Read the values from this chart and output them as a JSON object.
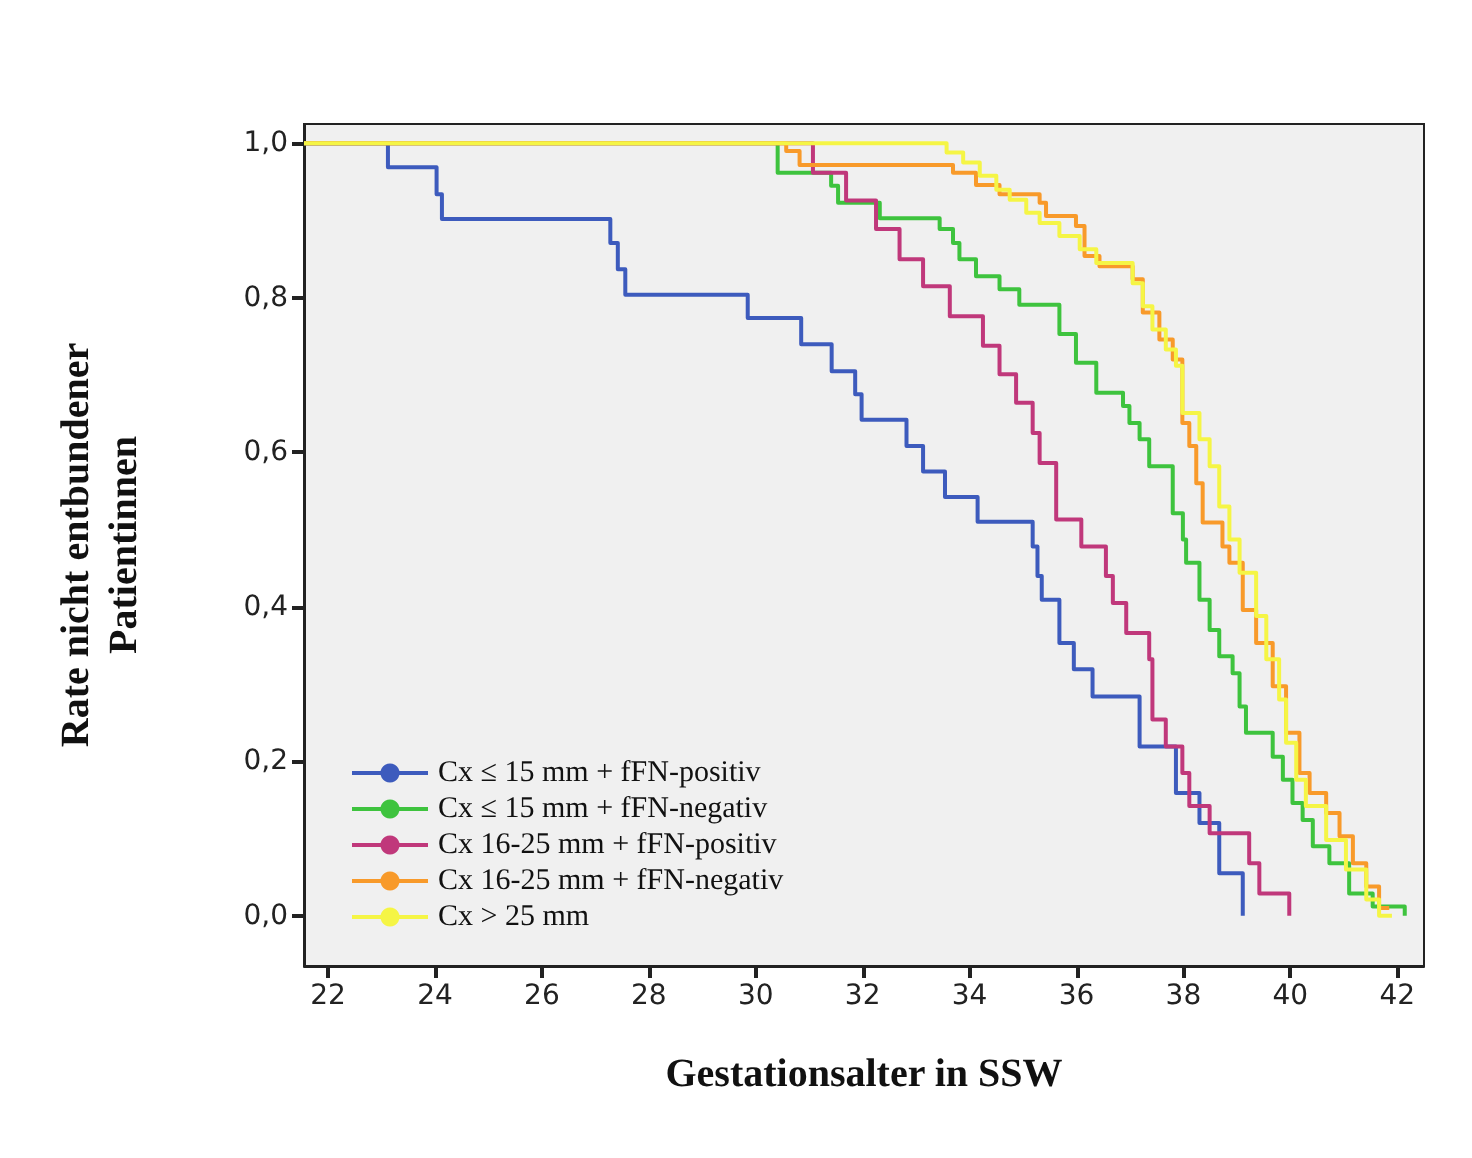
{
  "chart_data": {
    "type": "step",
    "xlabel": "Gestationsalter in SSW",
    "ylabel": "Rate nicht entbundener\nPatientinnen",
    "xlim": [
      21.55,
      42.5
    ],
    "xticks": [
      22,
      24,
      26,
      28,
      30,
      32,
      34,
      36,
      38,
      40,
      42
    ],
    "ylim": [
      -0.065,
      1.025
    ],
    "yticks": [
      {
        "value": 0,
        "label": "0,0"
      },
      {
        "value": 0.2,
        "label": "0,2"
      },
      {
        "value": 0.4,
        "label": "0,4"
      },
      {
        "value": 0.6,
        "label": "0,6"
      },
      {
        "value": 0.8,
        "label": "0,8"
      },
      {
        "value": 1,
        "label": "1,0"
      }
    ],
    "grid": false,
    "legend": "bottom left",
    "marker": "none",
    "line_style": "solid",
    "series": [
      {
        "name": "Cx ≤ 15 mm + fFN-positiv",
        "color": "#3d5bbd",
        "x": [
          21.55,
          23.12,
          24.03,
          24.13,
          27.28,
          27.42,
          27.56,
          29.85,
          30.85,
          31.42,
          31.86,
          31.98,
          32.82,
          33.13,
          33.54,
          34.15,
          35.18,
          35.27,
          35.35,
          35.68,
          35.95,
          36.3,
          37.18,
          37.86,
          38.3,
          38.67,
          39.11,
          39.11
        ],
        "values": [
          1.0,
          0.969,
          0.934,
          0.902,
          0.871,
          0.837,
          0.804,
          0.774,
          0.74,
          0.705,
          0.675,
          0.642,
          0.608,
          0.575,
          0.542,
          0.51,
          0.478,
          0.44,
          0.409,
          0.353,
          0.319,
          0.284,
          0.219,
          0.159,
          0.12,
          0.055,
          0.021,
          0.0
        ]
      },
      {
        "name": "Cx ≤ 15 mm + fFN-negativ",
        "color": "#3ec33e",
        "x": [
          21.55,
          30.41,
          31.41,
          31.54,
          32.32,
          33.44,
          33.69,
          33.81,
          34.12,
          34.56,
          34.93,
          35.68,
          35.99,
          36.37,
          36.87,
          36.99,
          37.18,
          37.36,
          37.8,
          37.99,
          38.05,
          38.3,
          38.49,
          38.67,
          38.92,
          39.05,
          39.17,
          39.67,
          39.86,
          40.04,
          40.23,
          40.42,
          40.73,
          41.1,
          41.54,
          42.14
        ],
        "values": [
          1.0,
          0.962,
          0.945,
          0.923,
          0.903,
          0.889,
          0.871,
          0.85,
          0.828,
          0.811,
          0.791,
          0.753,
          0.716,
          0.677,
          0.66,
          0.638,
          0.617,
          0.582,
          0.521,
          0.487,
          0.457,
          0.409,
          0.37,
          0.336,
          0.314,
          0.271,
          0.237,
          0.206,
          0.176,
          0.146,
          0.124,
          0.09,
          0.068,
          0.029,
          0.012,
          0.0
        ]
      },
      {
        "name": "Cx 16-25 mm + fFN-positiv",
        "color": "#c0387b",
        "x": [
          21.55,
          31.07,
          31.69,
          32.25,
          32.69,
          33.13,
          33.63,
          34.25,
          34.56,
          34.87,
          35.18,
          35.31,
          35.62,
          36.09,
          36.55,
          36.68,
          36.93,
          37.36,
          37.42,
          37.67,
          37.98,
          38.11,
          38.49,
          39.23,
          39.42,
          39.98
        ],
        "values": [
          1.0,
          0.962,
          0.926,
          0.889,
          0.85,
          0.815,
          0.776,
          0.738,
          0.701,
          0.664,
          0.625,
          0.586,
          0.513,
          0.478,
          0.44,
          0.405,
          0.366,
          0.332,
          0.254,
          0.219,
          0.185,
          0.142,
          0.107,
          0.068,
          0.029,
          0.0
        ]
      },
      {
        "name": "Cx 16-25 mm + fFN-negativ",
        "color": "#f89a2a",
        "x": [
          21.55,
          30.57,
          30.82,
          33.69,
          34.12,
          34.56,
          35.31,
          35.43,
          35.99,
          36.15,
          36.43,
          37.05,
          37.24,
          37.55,
          37.8,
          37.98,
          38.11,
          38.24,
          38.36,
          38.73,
          38.86,
          39.11,
          39.36,
          39.67,
          39.92,
          40.17,
          40.36,
          40.67,
          40.92,
          41.17,
          41.42,
          41.66,
          41.85
        ],
        "values": [
          1.0,
          0.99,
          0.972,
          0.962,
          0.946,
          0.934,
          0.923,
          0.906,
          0.893,
          0.854,
          0.841,
          0.824,
          0.781,
          0.746,
          0.72,
          0.638,
          0.608,
          0.56,
          0.509,
          0.478,
          0.457,
          0.396,
          0.353,
          0.297,
          0.237,
          0.185,
          0.159,
          0.133,
          0.103,
          0.068,
          0.038,
          0.01,
          0.01
        ]
      },
      {
        "name": "Cx > 25 mm",
        "color": "#f5f545",
        "x": [
          21.55,
          33.57,
          33.88,
          34.19,
          34.5,
          34.75,
          35.06,
          35.31,
          35.68,
          36.06,
          36.37,
          37.05,
          37.24,
          37.42,
          37.67,
          37.86,
          37.98,
          38.3,
          38.49,
          38.67,
          38.86,
          39.05,
          39.36,
          39.55,
          39.79,
          39.92,
          40.11,
          40.29,
          40.67,
          41.04,
          41.42,
          41.66,
          41.9
        ],
        "values": [
          1.0,
          0.988,
          0.975,
          0.958,
          0.94,
          0.927,
          0.91,
          0.897,
          0.88,
          0.863,
          0.845,
          0.819,
          0.789,
          0.759,
          0.733,
          0.712,
          0.651,
          0.617,
          0.582,
          0.53,
          0.487,
          0.444,
          0.388,
          0.332,
          0.28,
          0.224,
          0.176,
          0.142,
          0.098,
          0.06,
          0.021,
          0.0,
          0.0
        ]
      }
    ]
  }
}
